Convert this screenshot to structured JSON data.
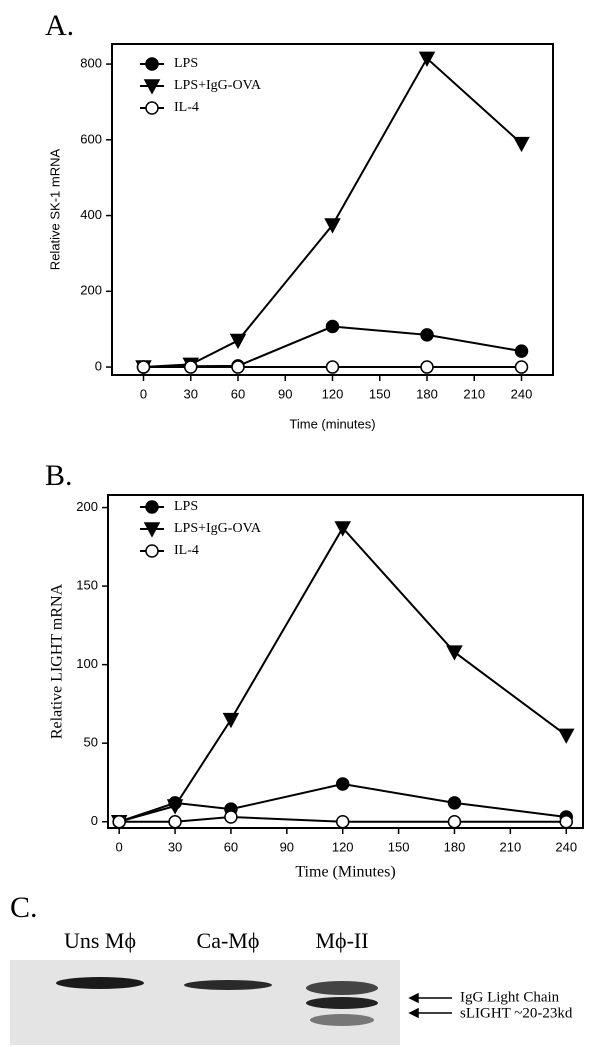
{
  "chart_data": [
    {
      "type": "line",
      "panel": "A.",
      "y_label": "Relative SK-1 mRNA",
      "x_label": "Time (minutes)",
      "x": [
        0,
        30,
        60,
        120,
        180,
        240
      ],
      "series": [
        {
          "name": "LPS",
          "color": "#000000",
          "marker": "circle",
          "marker_fill": "#000000",
          "values": [
            0,
            2,
            3,
            107,
            85,
            42
          ]
        },
        {
          "name": "LPS+IgG-OVA",
          "color": "#000000",
          "marker": "triangle-down",
          "marker_fill": "#000000",
          "values": [
            0,
            7,
            70,
            375,
            815,
            590
          ]
        },
        {
          "name": "IL-4",
          "color": "#000000",
          "marker": "circle",
          "marker_fill": "#ffffff",
          "values": [
            0,
            0,
            0,
            0,
            0,
            0
          ]
        }
      ],
      "xlim": [
        -20,
        260
      ],
      "xticks": [
        0,
        30,
        60,
        90,
        120,
        150,
        180,
        210,
        240
      ],
      "ylim": [
        -21,
        853
      ],
      "yticks": [
        0,
        200,
        400,
        600,
        800
      ],
      "legend": "upper left"
    },
    {
      "type": "line",
      "panel": "B.",
      "y_label": "Relative LIGHT mRNA",
      "x_label": "Time (Minutes)",
      "x": [
        0,
        30,
        60,
        120,
        180,
        240
      ],
      "series": [
        {
          "name": "LPS",
          "color": "#000000",
          "marker": "circle",
          "marker_fill": "#000000",
          "values": [
            0,
            12,
            8,
            24,
            12,
            3
          ]
        },
        {
          "name": "LPS+IgG-OVA",
          "color": "#000000",
          "marker": "triangle-down",
          "marker_fill": "#000000",
          "values": [
            0,
            10,
            65,
            187,
            108,
            55
          ]
        },
        {
          "name": "IL-4",
          "color": "#000000",
          "marker": "circle",
          "marker_fill": "#ffffff",
          "values": [
            0,
            0,
            3,
            0,
            0,
            0
          ]
        }
      ],
      "xlim": [
        -6,
        249
      ],
      "xticks": [
        0,
        30,
        60,
        90,
        120,
        150,
        180,
        210,
        240
      ],
      "ylim": [
        -4,
        208
      ],
      "yticks": [
        0,
        50,
        100,
        150,
        200
      ],
      "legend": "upper left"
    }
  ],
  "blot": {
    "panel": "C.",
    "lanes": [
      "Uns Mϕ",
      "Ca-Mϕ",
      "Mϕ-II"
    ],
    "bands": [
      "IgG Light Chain",
      "sLIGHT ~20-23kd"
    ]
  }
}
